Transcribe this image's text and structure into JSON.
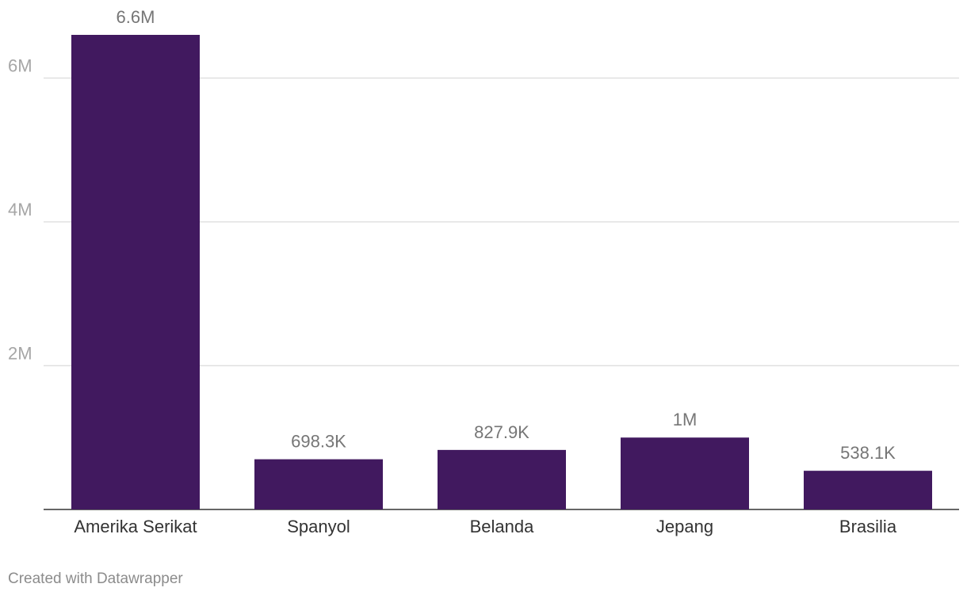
{
  "chart_data": {
    "type": "bar",
    "categories": [
      "Amerika Serikat",
      "Spanyol",
      "Belanda",
      "Jepang",
      "Brasilia"
    ],
    "values": [
      6600000,
      698300,
      827900,
      1000000,
      538100
    ],
    "value_labels": [
      "6.6M",
      "698.3K",
      "827.9K",
      "1M",
      "538.1K"
    ],
    "ylim": [
      0,
      6600000
    ],
    "yticks": [
      2000000,
      4000000,
      6000000
    ],
    "ytick_labels": [
      "2M",
      "4M",
      "6M"
    ],
    "grid": true,
    "bar_color": "#41195f"
  },
  "footer": "Created with Datawrapper"
}
